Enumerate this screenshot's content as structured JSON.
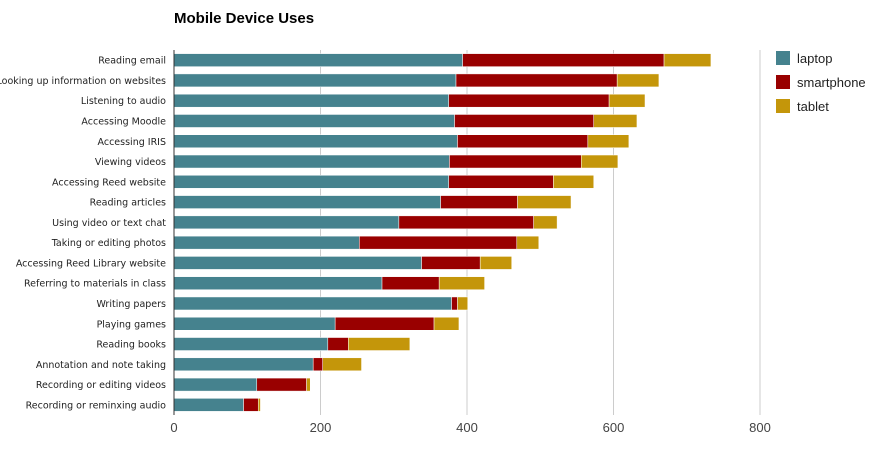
{
  "chart_data": {
    "type": "bar",
    "orientation": "horizontal",
    "stacked": true,
    "title": "Mobile Device Uses",
    "xlabel": "",
    "ylabel": "",
    "xlim": [
      0,
      800
    ],
    "x_ticks": [
      0,
      200,
      400,
      600,
      800
    ],
    "grid": true,
    "legend_position": "right",
    "categories": [
      "Reading email",
      "Looking up information on websites",
      "Listening to audio",
      "Accessing Moodle",
      "Accessing IRIS",
      "Viewing videos",
      "Accessing Reed website",
      "Reading articles",
      "Using video or text chat",
      "Taking or editing photos",
      "Accessing Reed Library website",
      "Referring to materials in class",
      "Writing papers",
      "Playing games",
      "Reading books",
      "Annotation and note taking",
      "Recording or editing videos",
      "Recording or reminxing audio"
    ],
    "series": [
      {
        "name": "laptop",
        "color": "#45828e",
        "values": [
          394,
          385,
          375,
          383,
          387,
          376,
          375,
          364,
          307,
          253,
          338,
          284,
          379,
          220,
          210,
          190,
          113,
          95
        ]
      },
      {
        "name": "smartphone",
        "color": "#990000",
        "values": [
          275,
          220,
          219,
          190,
          178,
          180,
          143,
          105,
          184,
          215,
          80,
          78,
          8,
          135,
          28,
          13,
          68,
          20
        ]
      },
      {
        "name": "tablet",
        "color": "#c4960a",
        "values": [
          64,
          57,
          49,
          59,
          56,
          50,
          55,
          73,
          32,
          30,
          43,
          62,
          14,
          34,
          84,
          53,
          5,
          3
        ]
      }
    ]
  }
}
